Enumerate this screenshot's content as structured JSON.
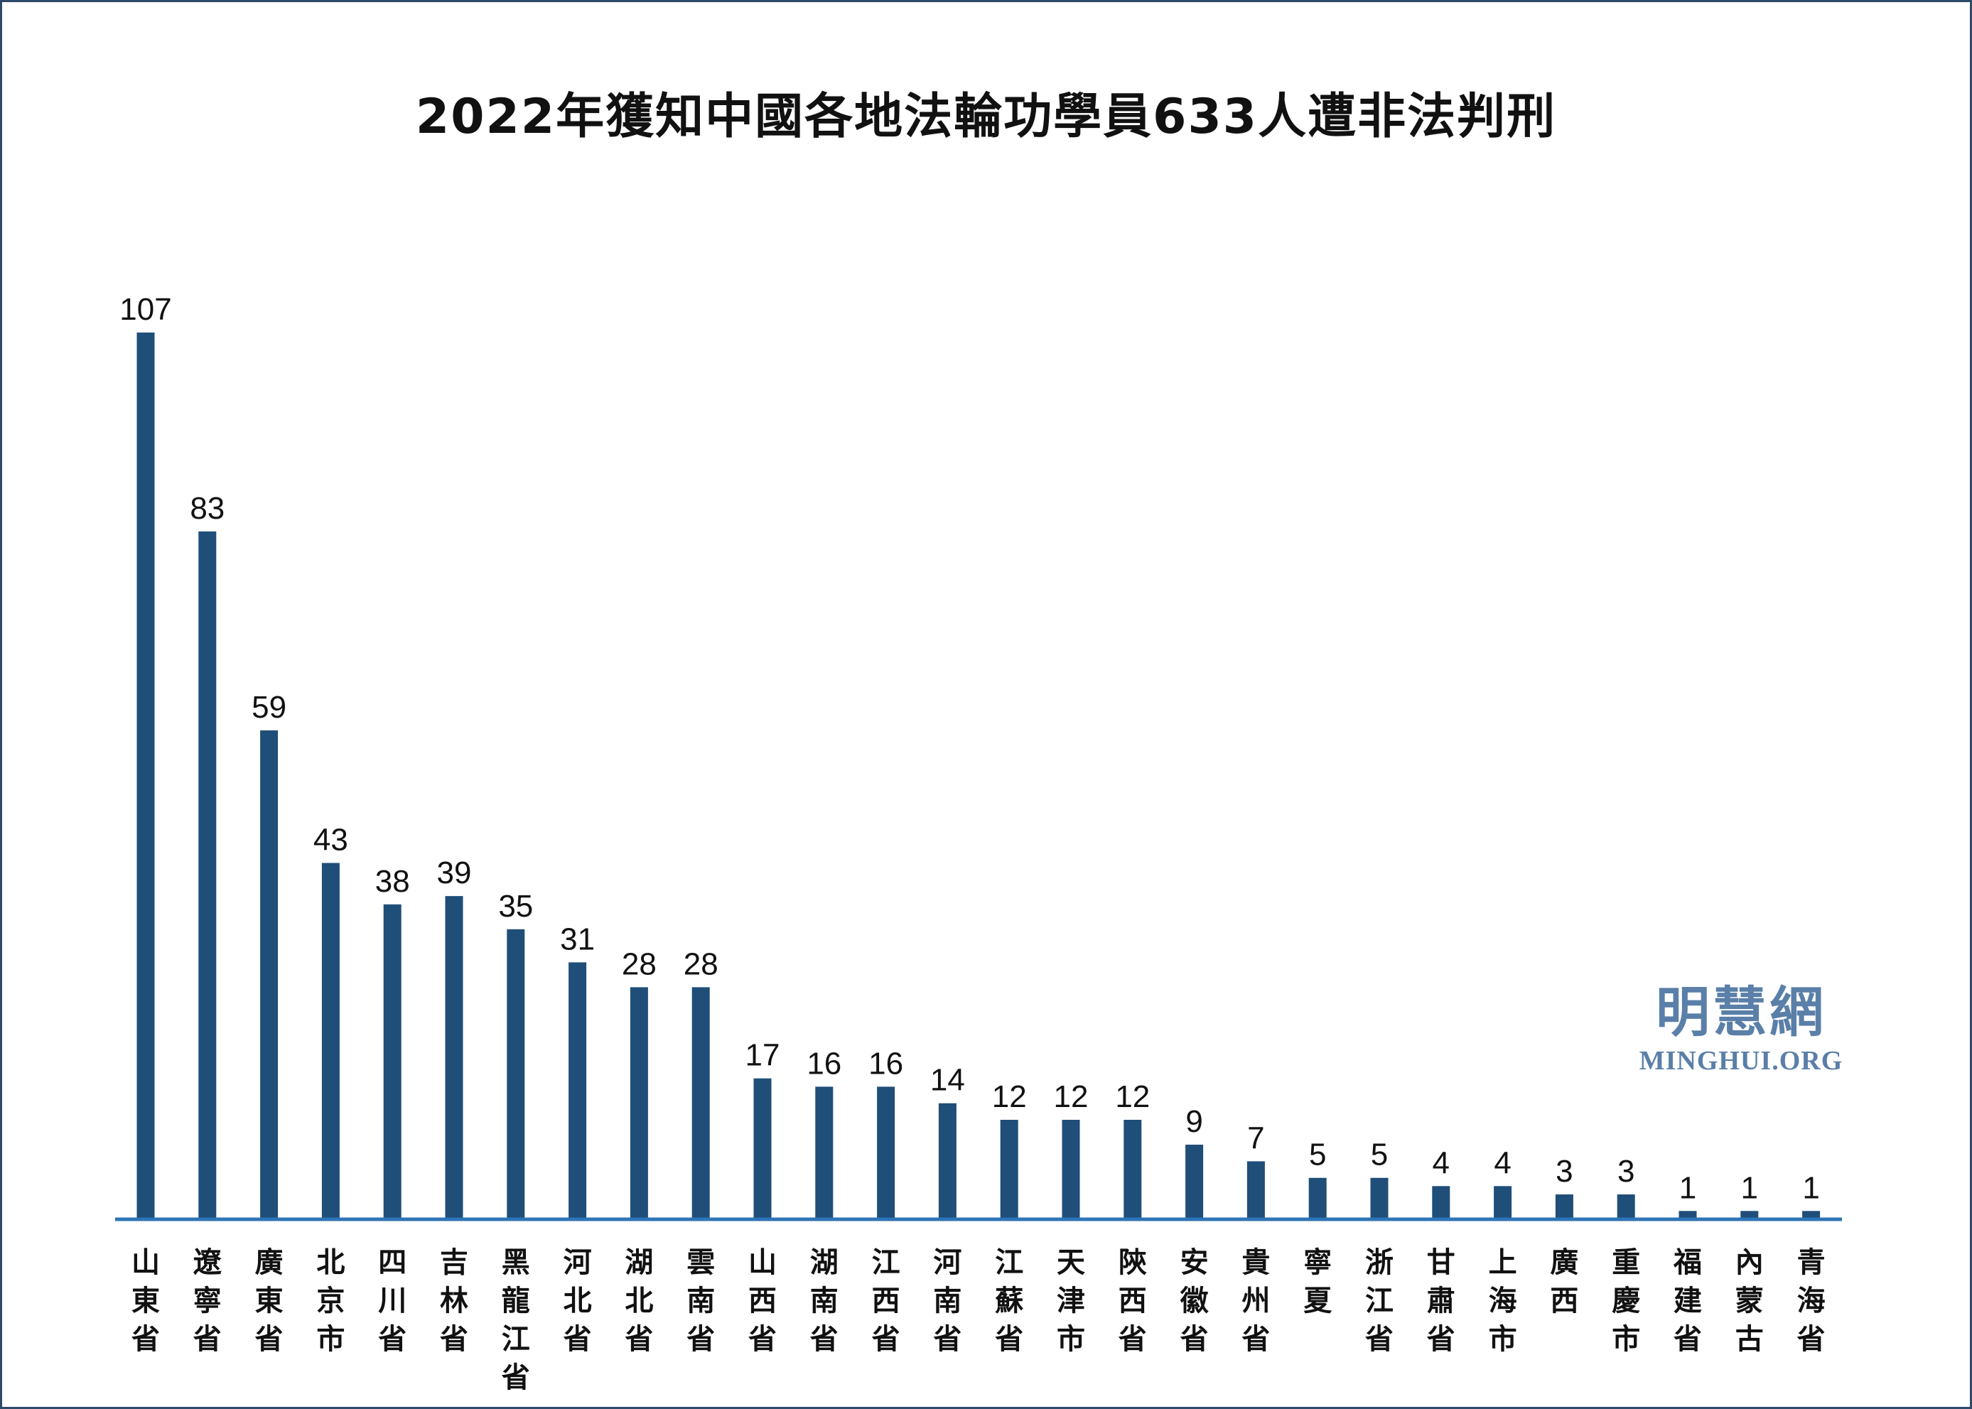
{
  "chart_data": {
    "type": "bar",
    "title": "2022年獲知中國各地法輪功學員633人遭非法判刑",
    "categories": [
      "山東省",
      "遼寧省",
      "廣東省",
      "北京市",
      "四川省",
      "吉林省",
      "黑龍江省",
      "河北省",
      "湖北省",
      "雲南省",
      "山西省",
      "湖南省",
      "江西省",
      "河南省",
      "江蘇省",
      "天津市",
      "陝西省",
      "安徽省",
      "貴州省",
      "寧夏",
      "浙江省",
      "甘肅省",
      "上海市",
      "廣西",
      "重慶市",
      "福建省",
      "內蒙古",
      "青海省"
    ],
    "values": [
      107,
      83,
      59,
      43,
      38,
      39,
      35,
      31,
      28,
      28,
      17,
      16,
      16,
      14,
      12,
      12,
      12,
      9,
      7,
      5,
      5,
      4,
      4,
      3,
      3,
      1,
      1,
      1
    ],
    "ylim": [
      0,
      107
    ],
    "xlabel": "",
    "ylabel": "",
    "grid": false,
    "bar_color": "#1f4e79",
    "axis_color": "#2e75b6"
  },
  "watermark": {
    "cn": "明慧網",
    "en": "MINGHUI.ORG"
  }
}
